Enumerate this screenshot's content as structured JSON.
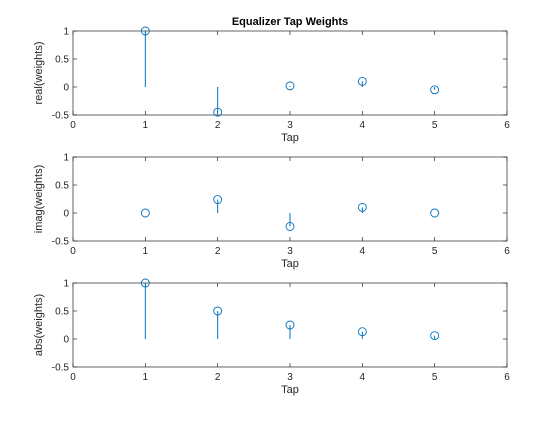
{
  "figure": {
    "title": "Equalizer Tap Weights"
  },
  "colors": {
    "stem": "#0072BD",
    "baseline": "#000000",
    "axes": "#262626",
    "grid": "#dcdcdc"
  },
  "chart_data": [
    {
      "type": "stem",
      "title": "Equalizer Tap Weights",
      "xlabel": "Tap",
      "ylabel": "real(weights)",
      "xlim": [
        0,
        6
      ],
      "ylim": [
        -0.5,
        1
      ],
      "xticks": [
        0,
        1,
        2,
        3,
        4,
        5,
        6
      ],
      "yticks": [
        -0.5,
        0,
        0.5,
        1
      ],
      "xticklabels": [
        "0",
        "1",
        "2",
        "3",
        "4",
        "5",
        "6"
      ],
      "yticklabels": [
        "-0.5",
        "0",
        "0.5",
        "1"
      ],
      "grid": true,
      "x": [
        1,
        2,
        3,
        4,
        5
      ],
      "y": [
        1.0,
        -0.45,
        0.02,
        0.1,
        -0.05
      ]
    },
    {
      "type": "stem",
      "title": "",
      "xlabel": "Tap",
      "ylabel": "imag(weights)",
      "xlim": [
        0,
        6
      ],
      "ylim": [
        -0.5,
        1
      ],
      "xticks": [
        0,
        1,
        2,
        3,
        4,
        5,
        6
      ],
      "yticks": [
        -0.5,
        0,
        0.5,
        1
      ],
      "xticklabels": [
        "0",
        "1",
        "2",
        "3",
        "4",
        "5",
        "6"
      ],
      "yticklabels": [
        "-0.5",
        "0",
        "0.5",
        "1"
      ],
      "grid": true,
      "x": [
        1,
        2,
        3,
        4,
        5
      ],
      "y": [
        0.0,
        0.24,
        -0.24,
        0.1,
        0.0
      ]
    },
    {
      "type": "stem",
      "title": "",
      "xlabel": "Tap",
      "ylabel": "abs(weights)",
      "xlim": [
        0,
        6
      ],
      "ylim": [
        -0.5,
        1
      ],
      "xticks": [
        0,
        1,
        2,
        3,
        4,
        5,
        6
      ],
      "yticks": [
        -0.5,
        0,
        0.5,
        1
      ],
      "xticklabels": [
        "0",
        "1",
        "2",
        "3",
        "4",
        "5",
        "6"
      ],
      "yticklabels": [
        "-0.5",
        "0",
        "0.5",
        "1"
      ],
      "grid": true,
      "x": [
        1,
        2,
        3,
        4,
        5
      ],
      "y": [
        1.0,
        0.5,
        0.25,
        0.13,
        0.06
      ]
    }
  ]
}
